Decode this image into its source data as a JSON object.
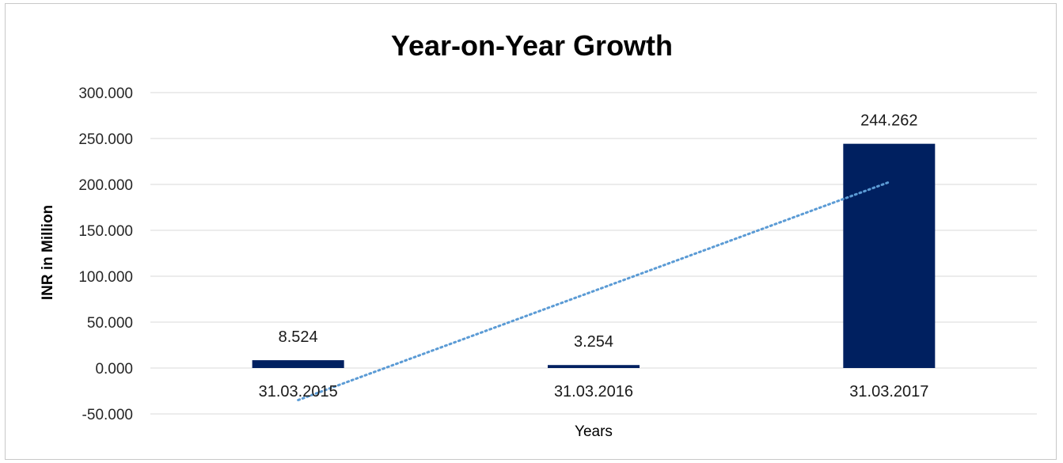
{
  "chart_data": {
    "type": "bar",
    "title": "Year-on-Year Growth",
    "xlabel": "Years",
    "ylabel": "INR in Million",
    "categories": [
      "31.03.2015",
      "31.03.2016",
      "31.03.2017"
    ],
    "values": [
      8.524,
      3.254,
      244.262
    ],
    "data_labels": [
      "8.524",
      "3.254",
      "244.262"
    ],
    "ylim": [
      -50,
      300
    ],
    "yticks": [
      -50,
      0,
      50,
      100,
      150,
      200,
      250,
      300
    ],
    "ytick_labels": [
      "-50.000",
      "0.000",
      "50.000",
      "100.000",
      "150.000",
      "200.000",
      "250.000",
      "300.000"
    ],
    "grid": true,
    "trendline": {
      "type": "linear",
      "style": "dotted",
      "start_value": -34.9,
      "end_value": 202.5
    },
    "colors": {
      "bar": "#002060",
      "trendline": "#5b9bd5",
      "grid": "#d9d9d9"
    }
  }
}
